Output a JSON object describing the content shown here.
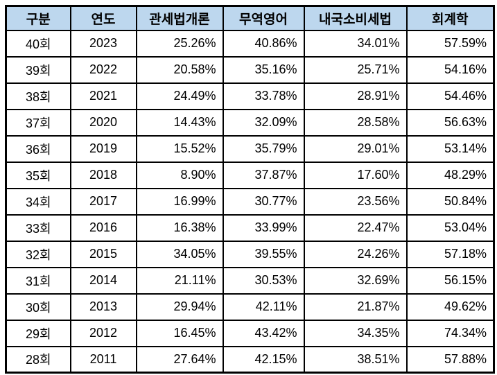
{
  "chart_data": {
    "type": "table",
    "columns": [
      "구분",
      "연도",
      "관세법개론",
      "무역영어",
      "내국소비세법",
      "회계학"
    ],
    "rows": [
      [
        "40회",
        "2023",
        "25.26%",
        "40.86%",
        "34.01%",
        "57.59%"
      ],
      [
        "39회",
        "2022",
        "20.58%",
        "35.16%",
        "25.71%",
        "54.16%"
      ],
      [
        "38회",
        "2021",
        "24.49%",
        "33.78%",
        "28.91%",
        "54.46%"
      ],
      [
        "37회",
        "2020",
        "14.43%",
        "32.09%",
        "28.58%",
        "56.63%"
      ],
      [
        "36회",
        "2019",
        "15.52%",
        "35.79%",
        "29.01%",
        "53.14%"
      ],
      [
        "35회",
        "2018",
        "8.90%",
        "37.87%",
        "17.60%",
        "48.29%"
      ],
      [
        "34회",
        "2017",
        "16.99%",
        "30.77%",
        "23.56%",
        "50.84%"
      ],
      [
        "33회",
        "2016",
        "16.38%",
        "33.99%",
        "22.47%",
        "53.04%"
      ],
      [
        "32회",
        "2015",
        "34.05%",
        "39.55%",
        "24.26%",
        "57.18%"
      ],
      [
        "31회",
        "2014",
        "21.11%",
        "30.53%",
        "32.69%",
        "56.15%"
      ],
      [
        "30회",
        "2013",
        "29.94%",
        "42.11%",
        "21.87%",
        "49.62%"
      ],
      [
        "29회",
        "2012",
        "16.45%",
        "43.42%",
        "34.35%",
        "74.34%"
      ],
      [
        "28회",
        "2011",
        "27.64%",
        "42.15%",
        "38.51%",
        "57.88%"
      ]
    ],
    "title": "",
    "layout_hints": {
      "header_fill": true,
      "gridlines": true,
      "accounting_column_highlighted": true
    }
  },
  "colors": {
    "header_bg": "#BDD7EE",
    "border": "#000000",
    "text": "#000000",
    "accounting_text": "#FF0000"
  }
}
